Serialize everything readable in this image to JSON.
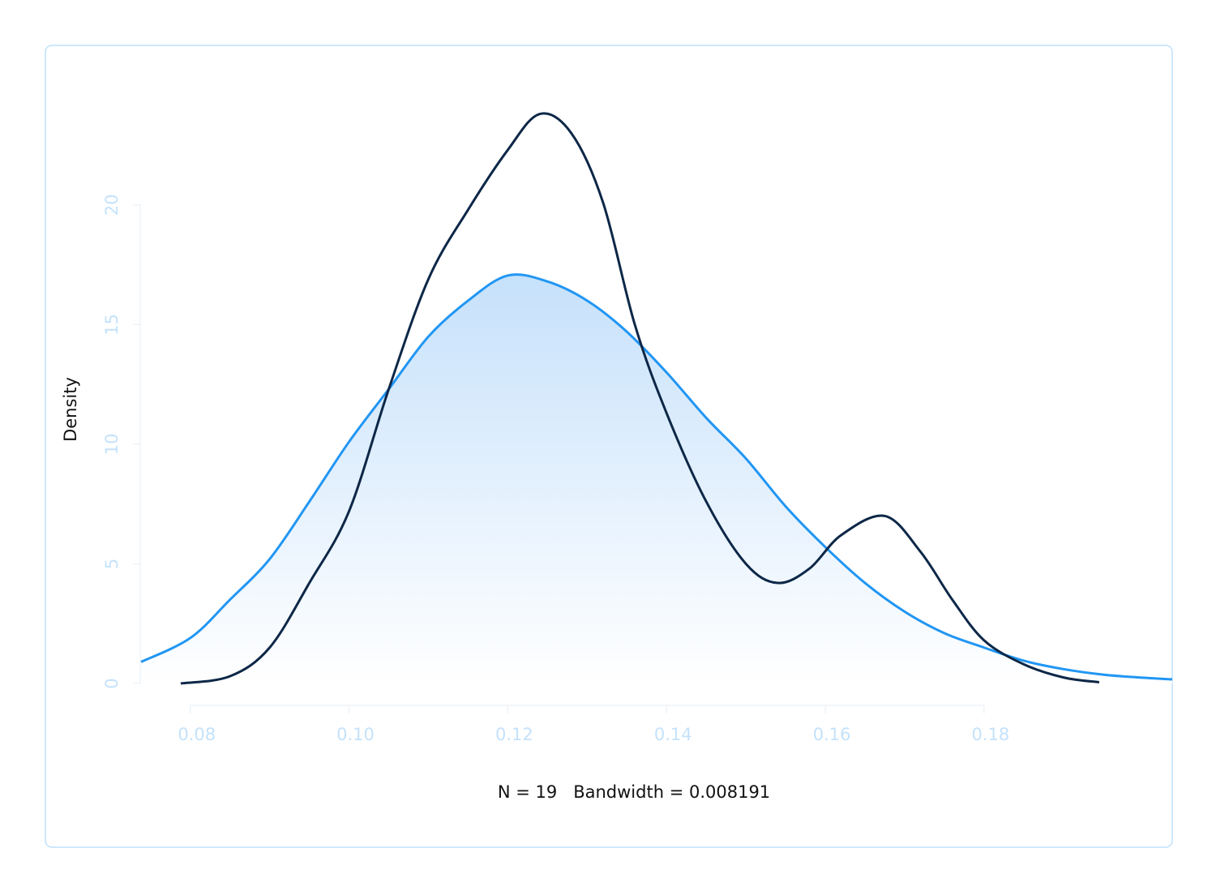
{
  "chart_data": {
    "type": "line",
    "xlabel": "N = 19   Bandwidth = 0.008191",
    "ylabel": "Density",
    "xlim": [
      0.0738,
      0.2037
    ],
    "ylim": [
      0,
      24.5
    ],
    "xticks": [
      0.08,
      {
        "value": 0.1,
        "label": "0.10"
      },
      0.12,
      0.14,
      0.16,
      0.18
    ],
    "yticks": [
      0,
      5,
      10,
      15,
      20
    ],
    "series": [
      {
        "color": "#0d2747",
        "x": [
          0.0788,
          0.085,
          0.09,
          0.095,
          0.1,
          0.105,
          0.11,
          0.115,
          0.12,
          0.124,
          0.128,
          0.132,
          0.136,
          0.14,
          0.145,
          0.15,
          0.154,
          0.158,
          0.162,
          0.1675,
          0.172,
          0.176,
          0.18,
          0.185,
          0.19,
          0.1945
        ],
        "values": [
          0.0,
          0.3,
          1.5,
          4.2,
          7.2,
          12.3,
          16.9,
          19.8,
          22.3,
          23.8,
          23.0,
          20.1,
          15.0,
          11.3,
          7.6,
          5.0,
          4.2,
          4.8,
          6.2,
          7.0,
          5.5,
          3.5,
          1.8,
          0.8,
          0.25,
          0.05
        ]
      },
      {
        "color": "#2196f3",
        "fill": true,
        "x": [
          0.0738,
          0.08,
          0.085,
          0.09,
          0.095,
          0.1,
          0.105,
          0.11,
          0.115,
          0.12,
          0.125,
          0.13,
          0.135,
          0.14,
          0.145,
          0.15,
          0.155,
          0.16,
          0.165,
          0.17,
          0.175,
          0.18,
          0.185,
          0.19,
          0.195,
          0.2,
          0.2037
        ],
        "values": [
          0.9,
          1.9,
          3.5,
          5.2,
          7.6,
          10.1,
          12.3,
          14.5,
          16.0,
          17.05,
          16.8,
          16.0,
          14.7,
          13.0,
          11.1,
          9.4,
          7.4,
          5.7,
          4.2,
          3.0,
          2.1,
          1.5,
          0.95,
          0.6,
          0.37,
          0.24,
          0.17
        ]
      }
    ]
  }
}
